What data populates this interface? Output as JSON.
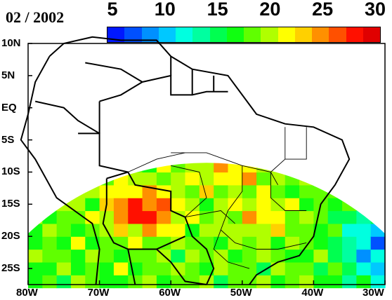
{
  "title": "02 / 2002",
  "colorbar": {
    "ticks": [
      "5",
      "10",
      "15",
      "20",
      "25",
      "30"
    ],
    "min": 5,
    "max": 30,
    "colors": [
      "#0018ff",
      "#0050ff",
      "#0090ff",
      "#00c8ff",
      "#00ffe0",
      "#00ffa0",
      "#00ff50",
      "#10ff10",
      "#60ff00",
      "#b0ff00",
      "#ffff00",
      "#ffd000",
      "#ff9000",
      "#ff5000",
      "#ff1000",
      "#e00000"
    ]
  },
  "axes": {
    "y_labels": [
      "10N",
      "5N",
      "EQ",
      "5S",
      "10S",
      "15S",
      "20S",
      "25S"
    ],
    "x_labels": [
      "80W",
      "70W",
      "60W",
      "50W",
      "40W",
      "30W"
    ]
  },
  "chart_data": {
    "type": "heatmap",
    "lon_range": [
      -80,
      -30
    ],
    "lat_range": [
      -27,
      10
    ],
    "cell_size_deg": 2,
    "variable_range": [
      5,
      30
    ],
    "notes": "Gridded field over South America, Feb 2002; high values (red) over western Amazon and Bolivia, low (blue) over SE Atlantic."
  }
}
